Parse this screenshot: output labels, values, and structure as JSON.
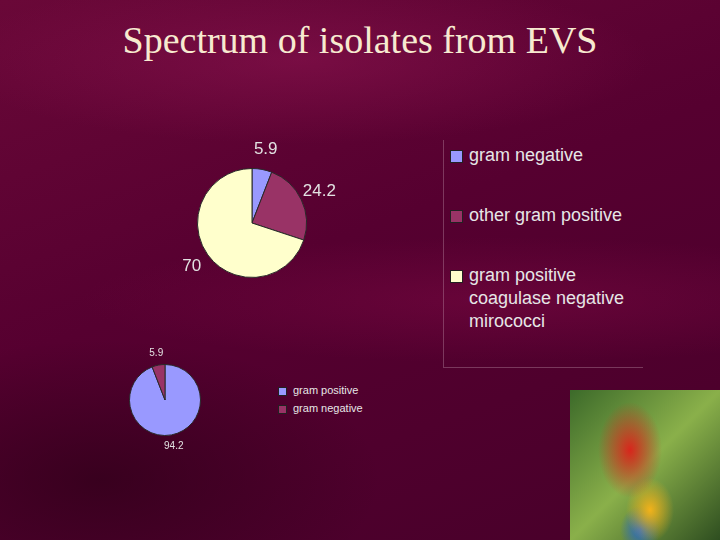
{
  "title": "Spectrum of isolates from EVS",
  "chart_data": [
    {
      "type": "pie",
      "categories": [
        "gram negative",
        "other gram positive",
        "gram positive coagulase negative mirococci"
      ],
      "values": [
        5.9,
        24.2,
        70
      ],
      "colors": [
        "#9999ff",
        "#993366",
        "#ffffcc"
      ],
      "data_labels": true,
      "legend": "right"
    },
    {
      "type": "pie",
      "categories": [
        "gram positive",
        "gram negative"
      ],
      "values": [
        94.2,
        5.9
      ],
      "colors": [
        "#9999ff",
        "#993366"
      ],
      "data_labels": true,
      "legend": "right"
    }
  ]
}
